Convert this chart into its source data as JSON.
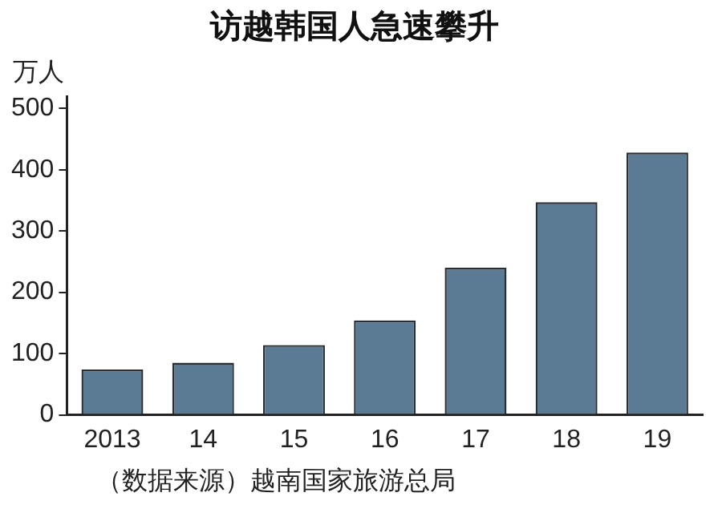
{
  "chart_data": {
    "type": "bar",
    "title": "访越韩国人急速攀升",
    "ylabel": "万人",
    "categories": [
      "2013",
      "14",
      "15",
      "16",
      "17",
      "18",
      "19"
    ],
    "values": [
      74,
      85,
      114,
      154,
      240,
      347,
      428
    ],
    "color": "#5b7a94",
    "ylim": [
      0,
      520
    ],
    "yticks": [
      0,
      100,
      200,
      300,
      400,
      500
    ],
    "grid": false,
    "legend": false,
    "annotations": [
      "（数据来源）越南国家旅游总局"
    ]
  }
}
